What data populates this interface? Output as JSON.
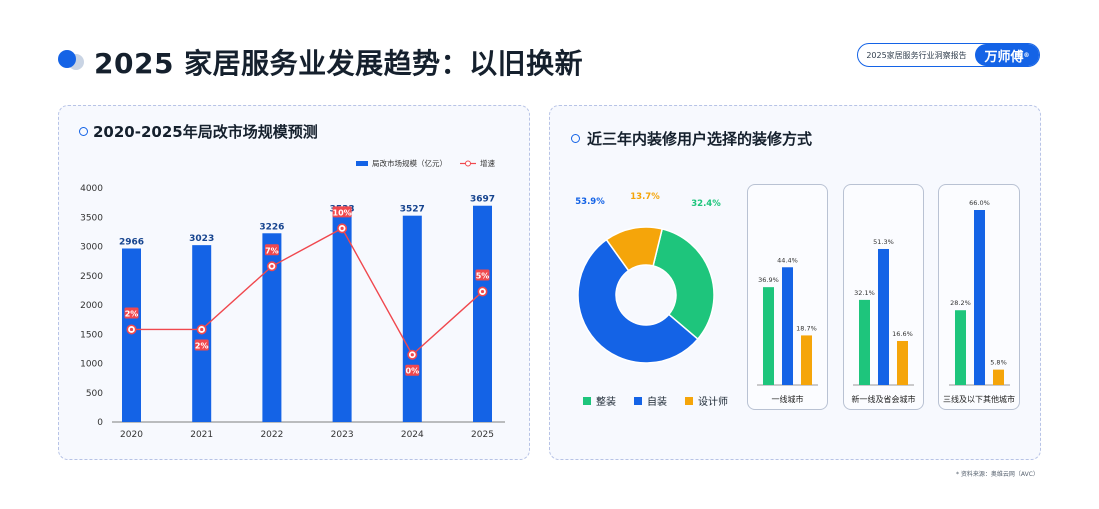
{
  "header": {
    "title": "2025 家居服务业发展趋势：以旧换新",
    "report_label": "2025家居服务行业洞察报告",
    "brand": "万师傅",
    "brand_mark": "®"
  },
  "colors": {
    "blue": "#1463e6",
    "green": "#1ec57c",
    "orange": "#f5a50a",
    "red_line": "#f0484e"
  },
  "left_panel": {
    "title": "2020-2025年局改市场规模预测"
  },
  "right_panel": {
    "title": "近三年内装修用户选择的装修方式"
  },
  "chart_data": [
    {
      "type": "bar",
      "title": "2020-2025年局改市场规模预测",
      "categories": [
        "2020",
        "2021",
        "2022",
        "2023",
        "2024",
        "2025"
      ],
      "series": [
        {
          "name": "局改市场规模（亿元）",
          "type": "bar",
          "values": [
            2966,
            3023,
            3226,
            3533,
            3527,
            3697
          ],
          "labels": [
            "2966",
            "3023",
            "3226",
            "3533",
            "3527",
            "3697"
          ]
        },
        {
          "name": "增速",
          "type": "line",
          "values": [
            2,
            2,
            7,
            10,
            0,
            5
          ],
          "labels": [
            "2%",
            "2%",
            "7%",
            "10%",
            "0%",
            "5%"
          ]
        }
      ],
      "ylim": [
        0,
        4000
      ],
      "yticks": [
        0,
        500,
        1000,
        1500,
        2000,
        2500,
        3000,
        3500,
        4000
      ],
      "legend": "top-right"
    },
    {
      "type": "pie",
      "categories": [
        "整装",
        "自装",
        "设计师"
      ],
      "values": [
        32.4,
        53.9,
        13.7
      ],
      "labels": [
        "32.4%",
        "53.9%",
        "13.7%"
      ],
      "colors": [
        "#1ec57c",
        "#1463e6",
        "#f5a50a"
      ],
      "legend": "bottom"
    },
    {
      "type": "bar",
      "categories": [
        "一线城市",
        "新一线及省会城市",
        "三线及以下其他城市"
      ],
      "series": [
        {
          "name": "整装",
          "values": [
            36.9,
            32.1,
            28.2
          ],
          "labels": [
            "36.9%",
            "32.1%",
            "28.2%"
          ]
        },
        {
          "name": "自装",
          "values": [
            44.4,
            51.3,
            66.0
          ],
          "labels": [
            "44.4%",
            "51.3%",
            "66.0%"
          ]
        },
        {
          "name": "设计师",
          "values": [
            18.7,
            16.6,
            5.8
          ],
          "labels": [
            "18.7%",
            "16.6%",
            "5.8%"
          ]
        }
      ],
      "ylim": [
        0,
        70
      ]
    }
  ],
  "source_note": "* 资料来源：奥维云网（AVC）"
}
